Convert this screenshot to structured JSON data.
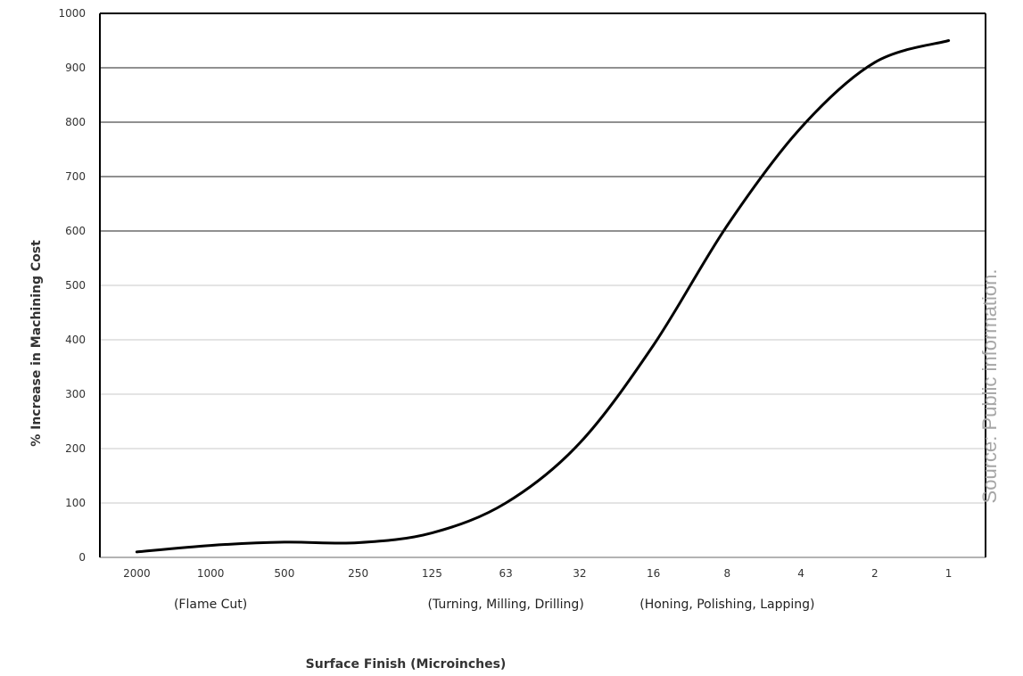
{
  "chart_data": {
    "type": "line",
    "title": "",
    "xlabel": "Surface Finish (Microinches)",
    "ylabel": "% Increase in Machining Cost",
    "ylim": [
      0,
      1000
    ],
    "yticks": [
      0,
      100,
      200,
      300,
      400,
      500,
      600,
      700,
      800,
      900,
      1000
    ],
    "categories": [
      "2000",
      "1000",
      "500",
      "250",
      "125",
      "63",
      "32",
      "16",
      "8",
      "4",
      "2",
      "1"
    ],
    "grid": true,
    "legend": "none",
    "series": [
      {
        "values": [
          10,
          22,
          28,
          27,
          45,
          100,
          210,
          390,
          610,
          790,
          910,
          950
        ],
        "color": "#000000"
      }
    ],
    "process_groups": [
      {
        "label": "(Flame Cut)",
        "center_category": "1000"
      },
      {
        "label": "(Turning, Milling, Drilling)",
        "center_category": "63"
      },
      {
        "label": "(Honing, Polishing, Lapping)",
        "center_category": "8"
      }
    ],
    "source_note": "Source: Public information."
  }
}
